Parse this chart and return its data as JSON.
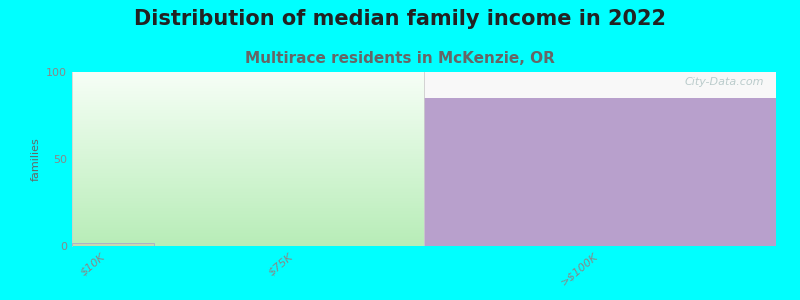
{
  "title": "Distribution of median family income in 2022",
  "subtitle": "Multirace residents in McKenzie, OR",
  "ylabel": "families",
  "background_color": "#00ffff",
  "plot_bg_color": "#ffffff",
  "ylim": [
    0,
    100
  ],
  "yticks": [
    0,
    50,
    100
  ],
  "bar_categories": [
    "$10K",
    "$75K",
    ">$100K"
  ],
  "watermark": "City-Data.com",
  "title_fontsize": 15,
  "subtitle_fontsize": 11,
  "subtitle_color": "#666666",
  "ylabel_color": "#666666",
  "tick_label_color": "#888888",
  "watermark_color": "#b0c4c4",
  "green_bar_value": 2,
  "purple_bar_value": 85,
  "green_color_bottom": "#b8edb8",
  "green_color_top": "#f0fff0",
  "purple_color": "#b8a0cc",
  "small_bar_color": "#c8d8b0",
  "small_bar_edge": "#aaaacc"
}
